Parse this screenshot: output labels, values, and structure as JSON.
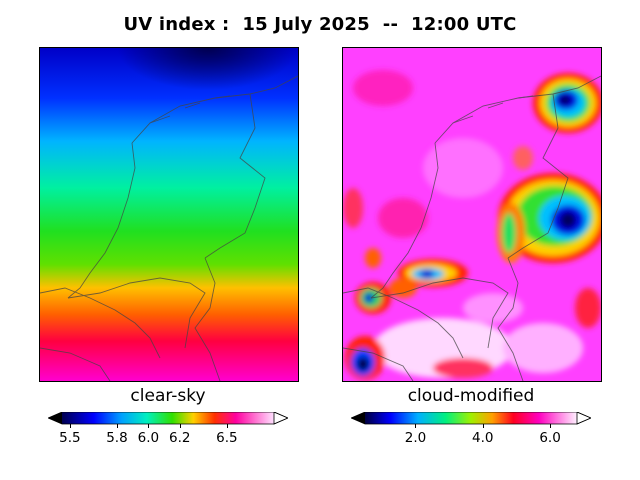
{
  "chart_data": [
    {
      "type": "heatmap",
      "title": "UV index :  15 July 2025  --  12:00 UTC",
      "panel_label": "clear-sky",
      "colorbar": {
        "ticks": [
          5.5,
          5.8,
          6.0,
          6.2,
          6.5
        ],
        "tick_labels": [
          "5.5",
          "5.8",
          "6.0",
          "6.2",
          "6.5"
        ],
        "range": [
          5.45,
          6.8
        ],
        "extend": "both"
      },
      "field_summary": {
        "north_min": 5.5,
        "south_max": 6.8,
        "gradient": "north-to-south"
      }
    },
    {
      "type": "heatmap",
      "panel_label": "cloud-modified",
      "colorbar": {
        "ticks": [
          2.0,
          4.0,
          6.0
        ],
        "tick_labels": [
          "2.0",
          "4.0",
          "6.0"
        ],
        "range": [
          0.5,
          6.8
        ],
        "extend": "both"
      },
      "field_summary": {
        "min": 1.0,
        "max": 6.8,
        "background": 6.3
      }
    }
  ],
  "header": {
    "title": "UV index :  15 July 2025  --  12:00 UTC"
  },
  "panels": {
    "left_label": "clear-sky",
    "right_label": "cloud-modified"
  },
  "colorbars": {
    "left_ticks": [
      "5.5",
      "5.8",
      "6.0",
      "6.2",
      "6.5"
    ],
    "right_ticks": [
      "2.0",
      "4.0",
      "6.0"
    ]
  }
}
